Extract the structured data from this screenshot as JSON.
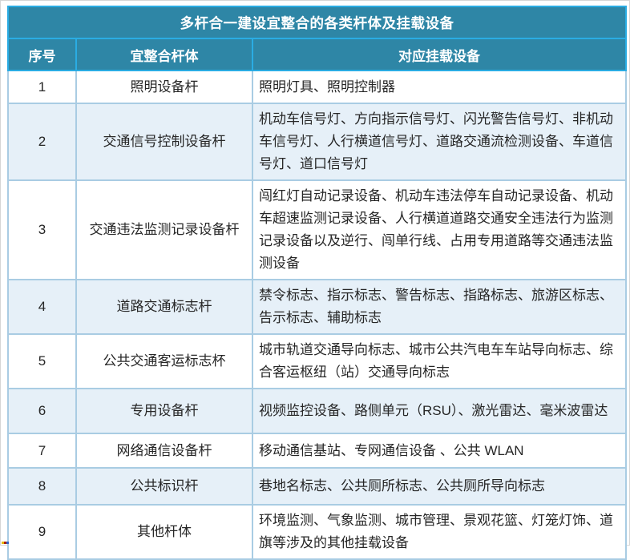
{
  "table": {
    "title": "多杆合一建设宜整合的各类杆体及挂载设备",
    "headers": [
      "序号",
      "宜整合杆体",
      "对应挂载设备"
    ],
    "rows": [
      {
        "no": "1",
        "pole": "照明设备杆",
        "devices": "照明灯具、照明控制器"
      },
      {
        "no": "2",
        "pole": "交通信号控制设备杆",
        "devices": "机动车信号灯、方向指示信号灯、闪光警告信号灯、非机动车信号灯、人行横道信号灯、道路交通流检测设备、车道信号灯、道口信号灯"
      },
      {
        "no": "3",
        "pole": "交通违法监测记录设备杆",
        "devices": "闯红灯自动记录设备、机动车违法停车自动记录设备、机动车超速监测记录设备、人行横道道路交通安全违法行为监测记录设备以及逆行、闯单行线、占用专用道路等交通违法监测设备"
      },
      {
        "no": "4",
        "pole": "道路交通标志杆",
        "devices": "禁令标志、指示标志、警告标志、指路标志、旅游区标志、告示标志、辅助标志"
      },
      {
        "no": "5",
        "pole": "公共交通客运标志杯",
        "devices": "城市轨道交通导向标志、城市公共汽电车车站导向标志、综合客运枢纽（站）交通导向标志"
      },
      {
        "no": "6",
        "pole": "专用设备杆",
        "devices": "视频监控设备、路侧单元（RSU）、激光雷达、毫米波雷达"
      },
      {
        "no": "7",
        "pole": "网络通信设备杆",
        "devices": "移动通信基站、专网通信设备 、公共 WLAN"
      },
      {
        "no": "8",
        "pole": "公共标识杆",
        "devices": "巷地名标志、公共厕所标志、公共厕所导向标志"
      },
      {
        "no": "9",
        "pole": "其他杆体",
        "devices": "环境监测、气象监测、城市管理、景观花篮、灯笼灯饰、道旗等涉及的其他挂载设备"
      }
    ],
    "colors": {
      "header_bg": "#2E86A6",
      "header_text": "#FFFFFF",
      "header_divider": "#2AACE3",
      "body_border": "#A9CCE3",
      "outer_border": "#2E7EA0",
      "row_alt_bg": "#E6F0F8",
      "row_bg": "#FFFFFF",
      "body_text": "#262626"
    }
  }
}
